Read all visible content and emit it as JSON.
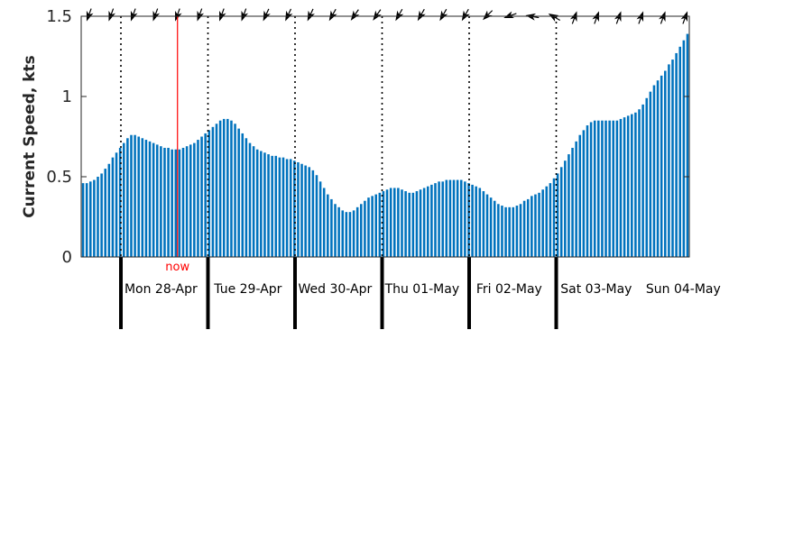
{
  "chart_data": {
    "type": "bar",
    "ylabel": "Current Speed, kts",
    "ylim": [
      0,
      1.5
    ],
    "yticks": [
      "0",
      "0.5",
      "1",
      "1.5"
    ],
    "ytick_values": [
      0,
      0.5,
      1,
      1.5
    ],
    "bar_color": "#0072bd",
    "now_color": "#ff0000",
    "now_label": "now",
    "now_x": 1.65,
    "x_range": [
      0,
      7.0
    ],
    "hours_per_bar": 1,
    "day_boundaries": [
      1,
      2,
      3,
      4,
      5,
      6
    ],
    "day_labels": [
      "Mon 28-Apr",
      "Tue 29-Apr",
      "Wed 30-Apr",
      "Thu 01-May",
      "Fri 02-May",
      "Sat 03-May",
      "Sun 04-May"
    ],
    "day_label_centers": [
      1.47,
      2.47,
      3.47,
      4.47,
      5.47,
      6.47,
      7.47
    ],
    "direction_arrows_deg": [
      200,
      200,
      200,
      200,
      200,
      200,
      200,
      200,
      205,
      205,
      205,
      210,
      215,
      215,
      210,
      210,
      210,
      210,
      225,
      250,
      280,
      300,
      20,
      20,
      20,
      20,
      20,
      20
    ],
    "values": [
      0.46,
      0.46,
      0.47,
      0.48,
      0.5,
      0.52,
      0.55,
      0.58,
      0.62,
      0.65,
      0.68,
      0.71,
      0.74,
      0.76,
      0.76,
      0.75,
      0.74,
      0.73,
      0.72,
      0.71,
      0.7,
      0.69,
      0.68,
      0.68,
      0.67,
      0.67,
      0.67,
      0.68,
      0.69,
      0.7,
      0.71,
      0.73,
      0.75,
      0.77,
      0.79,
      0.81,
      0.83,
      0.85,
      0.86,
      0.86,
      0.85,
      0.83,
      0.8,
      0.77,
      0.74,
      0.71,
      0.69,
      0.67,
      0.66,
      0.65,
      0.64,
      0.63,
      0.63,
      0.62,
      0.62,
      0.61,
      0.61,
      0.6,
      0.59,
      0.58,
      0.57,
      0.56,
      0.54,
      0.51,
      0.47,
      0.43,
      0.39,
      0.36,
      0.33,
      0.31,
      0.29,
      0.28,
      0.28,
      0.29,
      0.31,
      0.33,
      0.35,
      0.37,
      0.38,
      0.39,
      0.4,
      0.41,
      0.42,
      0.43,
      0.43,
      0.43,
      0.42,
      0.41,
      0.4,
      0.4,
      0.41,
      0.42,
      0.43,
      0.44,
      0.45,
      0.46,
      0.47,
      0.47,
      0.48,
      0.48,
      0.48,
      0.48,
      0.48,
      0.47,
      0.46,
      0.45,
      0.44,
      0.43,
      0.41,
      0.39,
      0.37,
      0.35,
      0.33,
      0.32,
      0.31,
      0.31,
      0.31,
      0.32,
      0.33,
      0.35,
      0.36,
      0.38,
      0.39,
      0.4,
      0.42,
      0.44,
      0.46,
      0.49,
      0.52,
      0.56,
      0.6,
      0.64,
      0.68,
      0.72,
      0.76,
      0.79,
      0.82,
      0.84,
      0.85,
      0.85,
      0.85,
      0.85,
      0.85,
      0.85,
      0.85,
      0.86,
      0.87,
      0.88,
      0.89,
      0.9,
      0.92,
      0.95,
      0.99,
      1.03,
      1.07,
      1.1,
      1.13,
      1.16,
      1.2,
      1.23,
      1.27,
      1.31,
      1.35,
      1.39
    ]
  }
}
